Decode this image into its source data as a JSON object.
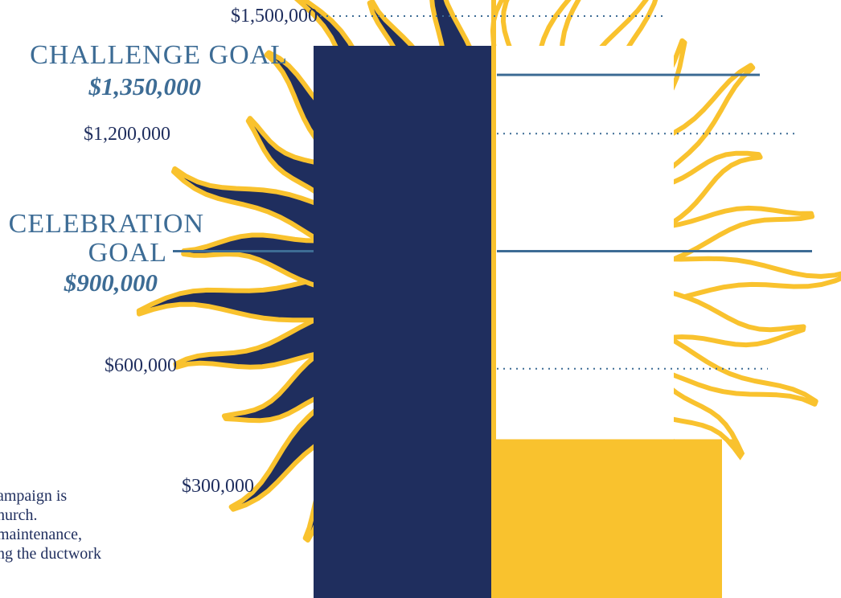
{
  "colors": {
    "navy": "#1f2e5e",
    "gold": "#f9c22e",
    "steel_blue": "#3d6c95",
    "white": "#ffffff"
  },
  "chart_data": {
    "type": "bar",
    "description_visible": "Fundraising thermometer styled as a sun",
    "axis": {
      "tick_labels": [
        "$1,500,000",
        "$1,200,000",
        "$600,000",
        "$300,000"
      ],
      "tick_values": [
        1500000,
        1200000,
        600000,
        300000
      ],
      "ylim": [
        0,
        1500000
      ]
    },
    "goals": [
      {
        "title": "CHALLENGE GOAL",
        "amount_label": "$1,350,000",
        "value": 1350000
      },
      {
        "title": "CELEBRATION GOAL",
        "amount_label": "$900,000",
        "value": 900000
      }
    ],
    "raised_fraction_right": 0.47,
    "fill_value": 420000
  },
  "body_text": [
    "ampaign is",
    "hurch.",
    " maintenance,",
    "ng the ductwork"
  ]
}
